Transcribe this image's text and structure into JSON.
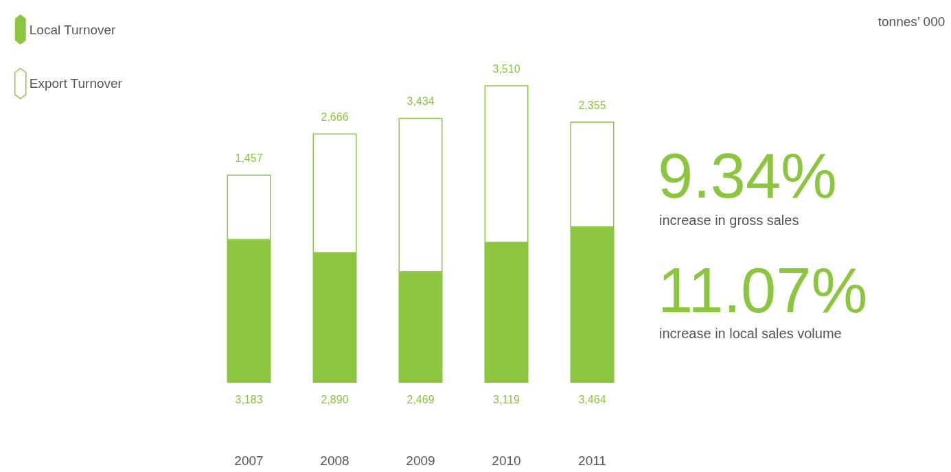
{
  "chart_data": {
    "type": "bar",
    "stacked": true,
    "categories": [
      "2007",
      "2008",
      "2009",
      "2010",
      "2011"
    ],
    "series": [
      {
        "name": "Local Turnover",
        "color": "#8cc63f",
        "values": [
          3183,
          2890,
          2469,
          3119,
          3464
        ],
        "value_labels": [
          "3,183",
          "2,890",
          "2,469",
          "3,119",
          "3,464"
        ]
      },
      {
        "name": "Export Turnover",
        "color": "#8cc63f",
        "values": [
          1457,
          2666,
          3434,
          3510,
          2355
        ],
        "value_labels": [
          "1,457",
          "2,666",
          "3,434",
          "3,510",
          "2,355"
        ]
      }
    ],
    "legend": "top left",
    "annotations": [
      "tonnes’ 000",
      "9.34%",
      "increase in gross sales",
      "11.07%",
      "increase in local sales volume"
    ]
  }
}
